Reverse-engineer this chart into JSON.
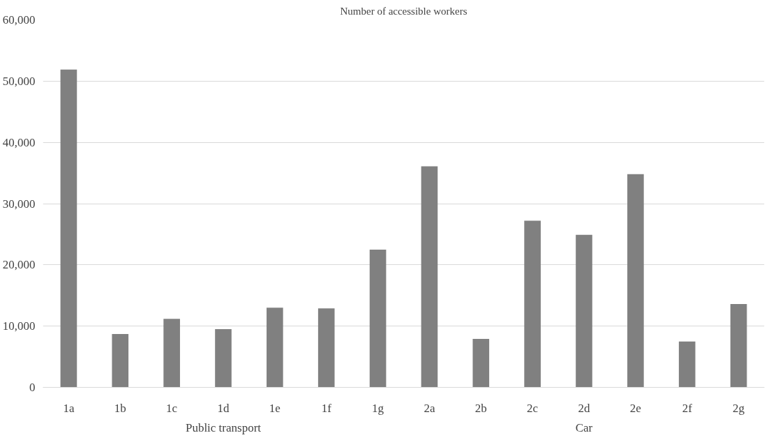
{
  "chart_data": {
    "type": "bar",
    "title": "Number of accessible workers",
    "categories": [
      "1a",
      "1b",
      "1c",
      "1d",
      "1e",
      "1f",
      "1g",
      "2a",
      "2b",
      "2c",
      "2d",
      "2e",
      "2f",
      "2g"
    ],
    "values": [
      51900,
      8700,
      11200,
      9500,
      13000,
      12900,
      22500,
      36100,
      7900,
      27200,
      24900,
      34800,
      7500,
      13600
    ],
    "color": "#808080",
    "ylim": [
      0,
      60000
    ],
    "yticks": [
      0,
      {
        "value": 10000,
        "label": "10,000"
      },
      {
        "value": 20000,
        "label": "20,000"
      },
      {
        "value": 30000,
        "label": "30,000"
      },
      {
        "value": 40000,
        "label": "40,000"
      },
      {
        "value": 50000,
        "label": "50,000"
      },
      {
        "value": 60000,
        "label": "60,000"
      }
    ],
    "grid": "y",
    "annotations": [
      "Public transport",
      "Car"
    ]
  }
}
